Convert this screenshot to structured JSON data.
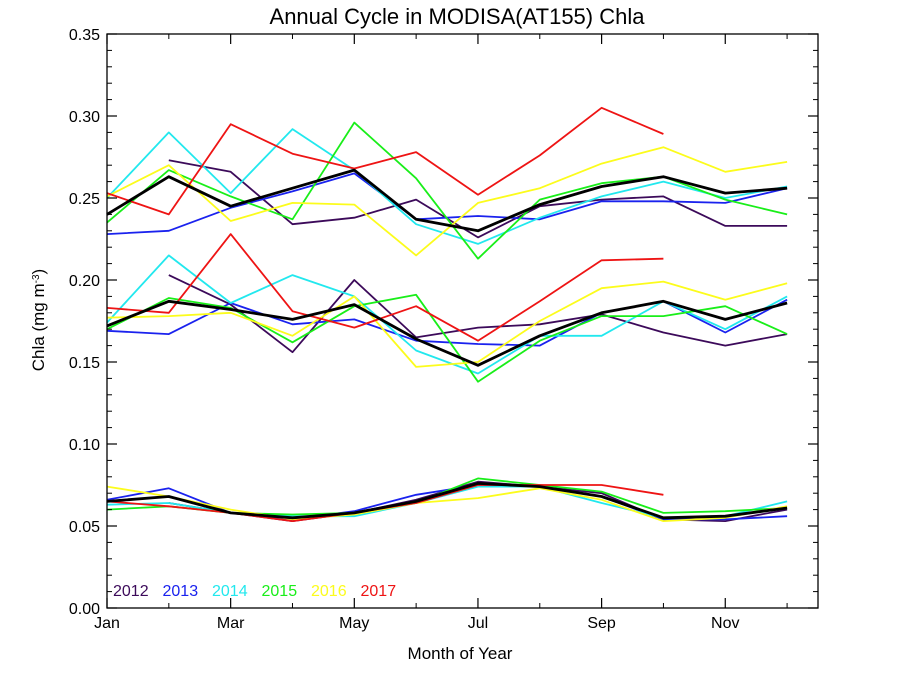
{
  "chart_data": {
    "type": "line",
    "title": "Annual Cycle in MODISA(AT155) Chla",
    "xlabel": "Month of Year",
    "ylabel_main": "Chla (mg m",
    "ylabel_sup": "-3",
    "ylabel_close": ")",
    "xlim": [
      0,
      11.5
    ],
    "ylim": [
      0,
      0.35
    ],
    "x_ticks": [
      {
        "value": 0,
        "label": "Jan"
      },
      {
        "value": 2,
        "label": "Mar"
      },
      {
        "value": 4,
        "label": "May"
      },
      {
        "value": 6,
        "label": "Jul"
      },
      {
        "value": 8,
        "label": "Sep"
      },
      {
        "value": 10,
        "label": "Nov"
      }
    ],
    "y_ticks": [
      {
        "value": 0,
        "label": "0.00"
      },
      {
        "value": 0.05,
        "label": "0.05"
      },
      {
        "value": 0.1,
        "label": "0.10"
      },
      {
        "value": 0.15,
        "label": "0.15"
      },
      {
        "value": 0.2,
        "label": "0.20"
      },
      {
        "value": 0.25,
        "label": "0.25"
      },
      {
        "value": 0.3,
        "label": "0.30"
      },
      {
        "value": 0.35,
        "label": "0.35"
      }
    ],
    "legend_placement": "bottom-left",
    "x": [
      0,
      1,
      2,
      3,
      4,
      5,
      6,
      7,
      8,
      9,
      10,
      11
    ],
    "series": [
      {
        "name": "2012",
        "color": "#3c0a5a",
        "legend": true,
        "upper": [
          null,
          0.273,
          0.266,
          0.234,
          0.238,
          0.249,
          0.226,
          0.245,
          0.249,
          0.251,
          0.233,
          0.233
        ],
        "middle": [
          null,
          0.203,
          0.185,
          0.156,
          0.2,
          0.165,
          0.171,
          0.173,
          0.179,
          0.168,
          0.16,
          0.167
        ],
        "lower": [
          null,
          0.064,
          0.058,
          0.053,
          0.058,
          0.066,
          0.077,
          0.074,
          0.07,
          0.054,
          0.053,
          0.06
        ]
      },
      {
        "name": "2013",
        "color": "#1a22ee",
        "legend": true,
        "upper": [
          0.228,
          0.23,
          0.244,
          0.254,
          0.265,
          0.237,
          0.239,
          0.237,
          0.248,
          0.248,
          0.247,
          0.256
        ],
        "middle": [
          0.169,
          0.167,
          0.186,
          0.173,
          0.176,
          0.163,
          0.161,
          0.16,
          0.18,
          0.187,
          0.168,
          0.188
        ],
        "lower": [
          0.066,
          0.073,
          0.058,
          0.054,
          0.059,
          0.069,
          0.075,
          0.074,
          0.068,
          0.054,
          0.054,
          0.056
        ]
      },
      {
        "name": "2014",
        "color": "#22e8ee",
        "legend": true,
        "upper": [
          0.25,
          0.29,
          0.253,
          0.292,
          0.267,
          0.234,
          0.222,
          0.238,
          0.251,
          0.26,
          0.25,
          0.257
        ],
        "middle": [
          0.174,
          0.215,
          0.186,
          0.203,
          0.19,
          0.157,
          0.143,
          0.166,
          0.166,
          0.187,
          0.17,
          0.19
        ],
        "lower": [
          0.063,
          0.064,
          0.058,
          0.056,
          0.056,
          0.064,
          0.074,
          0.074,
          0.064,
          0.055,
          0.056,
          0.065
        ]
      },
      {
        "name": "2015",
        "color": "#19ee19",
        "legend": true,
        "upper": [
          0.235,
          0.267,
          0.251,
          0.237,
          0.296,
          0.262,
          0.213,
          0.249,
          0.259,
          0.263,
          0.249,
          0.24
        ],
        "middle": [
          0.17,
          0.189,
          0.183,
          0.162,
          0.184,
          0.191,
          0.138,
          0.163,
          0.178,
          0.178,
          0.184,
          0.167
        ],
        "lower": [
          0.06,
          0.062,
          0.058,
          0.057,
          0.058,
          0.064,
          0.079,
          0.075,
          0.071,
          0.058,
          0.059,
          0.061
        ]
      },
      {
        "name": "2016",
        "color": "#fcfc1c",
        "legend": true,
        "upper": [
          0.251,
          0.27,
          0.236,
          0.247,
          0.246,
          0.215,
          0.247,
          0.256,
          0.271,
          0.281,
          0.266,
          0.272
        ],
        "middle": [
          0.177,
          0.178,
          0.18,
          0.166,
          0.19,
          0.147,
          0.15,
          0.175,
          0.195,
          0.199,
          0.188,
          0.198
        ],
        "lower": [
          0.074,
          0.068,
          0.06,
          0.054,
          0.057,
          0.064,
          0.067,
          0.073,
          0.066,
          0.053,
          0.055,
          0.062
        ]
      },
      {
        "name": "2017",
        "color": "#ee1414",
        "legend": true,
        "upper": [
          0.253,
          0.24,
          0.295,
          0.277,
          0.268,
          0.278,
          0.252,
          0.276,
          0.305,
          0.289,
          null,
          null
        ],
        "middle": [
          0.183,
          0.18,
          0.228,
          0.181,
          0.171,
          0.184,
          0.163,
          0.187,
          0.212,
          0.213,
          null,
          null
        ],
        "lower": [
          0.065,
          0.062,
          0.058,
          0.053,
          0.058,
          0.064,
          0.075,
          0.075,
          0.075,
          0.069,
          null,
          null
        ]
      },
      {
        "name": "",
        "color": "#000000",
        "legend": false,
        "bold": true,
        "upper": [
          0.24,
          0.263,
          0.245,
          0.256,
          0.267,
          0.237,
          0.23,
          0.246,
          0.257,
          0.263,
          0.253,
          0.256
        ],
        "middle": [
          0.172,
          0.187,
          0.182,
          0.176,
          0.185,
          0.164,
          0.148,
          0.166,
          0.18,
          0.187,
          0.176,
          0.186
        ],
        "lower": [
          0.065,
          0.068,
          0.058,
          0.055,
          0.058,
          0.065,
          0.076,
          0.074,
          0.068,
          0.055,
          0.056,
          0.061
        ]
      }
    ]
  }
}
